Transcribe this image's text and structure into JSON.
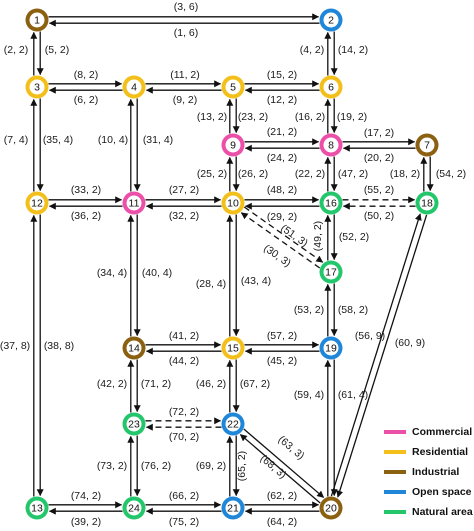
{
  "legend": [
    {
      "key": "commercial",
      "label": "Commercial",
      "color": "#ec4fa8"
    },
    {
      "key": "residential",
      "label": "Residential",
      "color": "#f2bf1b"
    },
    {
      "key": "industrial",
      "label": "Industrial",
      "color": "#8b6010"
    },
    {
      "key": "open_space",
      "label": "Open space",
      "color": "#1f86d8"
    },
    {
      "key": "natural_area",
      "label": "Natural area",
      "color": "#24c66b"
    }
  ],
  "nodes": [
    {
      "id": "1",
      "type": "industrial"
    },
    {
      "id": "2",
      "type": "open_space"
    },
    {
      "id": "3",
      "type": "residential"
    },
    {
      "id": "4",
      "type": "residential"
    },
    {
      "id": "5",
      "type": "residential"
    },
    {
      "id": "6",
      "type": "residential"
    },
    {
      "id": "7",
      "type": "industrial"
    },
    {
      "id": "8",
      "type": "commercial"
    },
    {
      "id": "9",
      "type": "commercial"
    },
    {
      "id": "10",
      "type": "residential"
    },
    {
      "id": "11",
      "type": "commercial"
    },
    {
      "id": "12",
      "type": "residential"
    },
    {
      "id": "13",
      "type": "natural_area"
    },
    {
      "id": "14",
      "type": "industrial"
    },
    {
      "id": "15",
      "type": "residential"
    },
    {
      "id": "16",
      "type": "natural_area"
    },
    {
      "id": "17",
      "type": "natural_area"
    },
    {
      "id": "18",
      "type": "natural_area"
    },
    {
      "id": "19",
      "type": "open_space"
    },
    {
      "id": "20",
      "type": "industrial"
    },
    {
      "id": "21",
      "type": "open_space"
    },
    {
      "id": "22",
      "type": "open_space"
    },
    {
      "id": "23",
      "type": "natural_area"
    },
    {
      "id": "24",
      "type": "natural_area"
    }
  ],
  "links": [
    {
      "from": "1",
      "to": "2",
      "label": "(3, 6)"
    },
    {
      "from": "2",
      "to": "1",
      "label": "(1, 6)"
    },
    {
      "from": "1",
      "to": "3",
      "label": "(2, 2)"
    },
    {
      "from": "3",
      "to": "1",
      "label": "(5, 2)"
    },
    {
      "from": "2",
      "to": "6",
      "label": "(4, 2)"
    },
    {
      "from": "6",
      "to": "2",
      "label": "(14, 2)"
    },
    {
      "from": "4",
      "to": "3",
      "label": "(8, 2)"
    },
    {
      "from": "3",
      "to": "4",
      "label": "(6, 2)"
    },
    {
      "from": "5",
      "to": "4",
      "label": "(11, 2)"
    },
    {
      "from": "4",
      "to": "5",
      "label": "(9, 2)"
    },
    {
      "from": "6",
      "to": "5",
      "label": "(15, 2)"
    },
    {
      "from": "5",
      "to": "6",
      "label": "(12, 2)"
    },
    {
      "from": "3",
      "to": "12",
      "label": "(7, 4)"
    },
    {
      "from": "12",
      "to": "3",
      "label": "(35, 4)"
    },
    {
      "from": "4",
      "to": "11",
      "label": "(10, 4)"
    },
    {
      "from": "11",
      "to": "4",
      "label": "(31, 4)"
    },
    {
      "from": "5",
      "to": "9",
      "label": "(13, 2)"
    },
    {
      "from": "9",
      "to": "5",
      "label": "(23, 2)"
    },
    {
      "from": "6",
      "to": "8",
      "label": "(16, 2)"
    },
    {
      "from": "8",
      "to": "6",
      "label": "(19, 2)"
    },
    {
      "from": "8",
      "to": "9",
      "label": "(21, 2)"
    },
    {
      "from": "9",
      "to": "8",
      "label": "(24, 2)"
    },
    {
      "from": "7",
      "to": "8",
      "label": "(17, 2)"
    },
    {
      "from": "8",
      "to": "7",
      "label": "(20, 2)"
    },
    {
      "from": "7",
      "to": "18",
      "label": "(18, 2)"
    },
    {
      "from": "18",
      "to": "7",
      "label": "(54, 2)"
    },
    {
      "from": "9",
      "to": "10",
      "label": "(25, 2)"
    },
    {
      "from": "10",
      "to": "9",
      "label": "(26, 2)"
    },
    {
      "from": "8",
      "to": "16",
      "label": "(22, 2)"
    },
    {
      "from": "16",
      "to": "8",
      "label": "(47, 2)"
    },
    {
      "from": "12",
      "to": "11",
      "label": "(33, 2)"
    },
    {
      "from": "11",
      "to": "12",
      "label": "(36, 2)"
    },
    {
      "from": "10",
      "to": "11",
      "label": "(27, 2)"
    },
    {
      "from": "11",
      "to": "10",
      "label": "(32, 2)"
    },
    {
      "from": "16",
      "to": "10",
      "label": "(48, 2)"
    },
    {
      "from": "10",
      "to": "16",
      "label": "(29, 2)"
    },
    {
      "from": "18",
      "to": "16",
      "label": "(55, 2)",
      "dashed": true
    },
    {
      "from": "16",
      "to": "18",
      "label": "(50, 2)",
      "dashed": true
    },
    {
      "from": "10",
      "to": "17",
      "label": "(51, 3)",
      "dashed": true
    },
    {
      "from": "17",
      "to": "10",
      "label": "(30, 3)",
      "dashed": true
    },
    {
      "from": "16",
      "to": "17",
      "label": "(49, 2)"
    },
    {
      "from": "17",
      "to": "16",
      "label": "(52, 2)"
    },
    {
      "from": "11",
      "to": "14",
      "label": "(34, 4)"
    },
    {
      "from": "14",
      "to": "11",
      "label": "(40, 4)"
    },
    {
      "from": "10",
      "to": "15",
      "label": "(28, 4)"
    },
    {
      "from": "15",
      "to": "10",
      "label": "(43, 4)"
    },
    {
      "from": "17",
      "to": "19",
      "label": "(53, 2)"
    },
    {
      "from": "19",
      "to": "17",
      "label": "(58, 2)"
    },
    {
      "from": "12",
      "to": "13",
      "label": "(37, 8)"
    },
    {
      "from": "13",
      "to": "12",
      "label": "(38, 8)"
    },
    {
      "from": "15",
      "to": "14",
      "label": "(41, 2)"
    },
    {
      "from": "14",
      "to": "15",
      "label": "(44, 2)"
    },
    {
      "from": "19",
      "to": "15",
      "label": "(57, 2)"
    },
    {
      "from": "15",
      "to": "19",
      "label": "(45, 2)"
    },
    {
      "from": "20",
      "to": "18",
      "label": "(56, 9)"
    },
    {
      "from": "18",
      "to": "20",
      "label": "(60, 9)"
    },
    {
      "from": "14",
      "to": "23",
      "label": "(42, 2)"
    },
    {
      "from": "23",
      "to": "14",
      "label": "(71, 2)"
    },
    {
      "from": "15",
      "to": "22",
      "label": "(46, 2)"
    },
    {
      "from": "22",
      "to": "15",
      "label": "(67, 2)"
    },
    {
      "from": "19",
      "to": "20",
      "label": "(59, 4)"
    },
    {
      "from": "20",
      "to": "19",
      "label": "(61, 4)"
    },
    {
      "from": "22",
      "to": "23",
      "label": "(72, 2)",
      "dashed": true
    },
    {
      "from": "23",
      "to": "22",
      "label": "(70, 2)",
      "dashed": true
    },
    {
      "from": "22",
      "to": "20",
      "label": "(63, 3)"
    },
    {
      "from": "20",
      "to": "22",
      "label": "(68, 3)"
    },
    {
      "from": "23",
      "to": "24",
      "label": "(73, 2)"
    },
    {
      "from": "24",
      "to": "23",
      "label": "(76, 2)"
    },
    {
      "from": "22",
      "to": "21",
      "label": "(69, 2)"
    },
    {
      "from": "21",
      "to": "22",
      "label": "(65, 2)"
    },
    {
      "from": "24",
      "to": "13",
      "label": "(74, 2)"
    },
    {
      "from": "13",
      "to": "24",
      "label": "(39, 2)"
    },
    {
      "from": "21",
      "to": "24",
      "label": "(66, 2)"
    },
    {
      "from": "24",
      "to": "21",
      "label": "(75, 2)"
    },
    {
      "from": "20",
      "to": "21",
      "label": "(62, 2)"
    },
    {
      "from": "21",
      "to": "20",
      "label": "(64, 2)"
    }
  ]
}
